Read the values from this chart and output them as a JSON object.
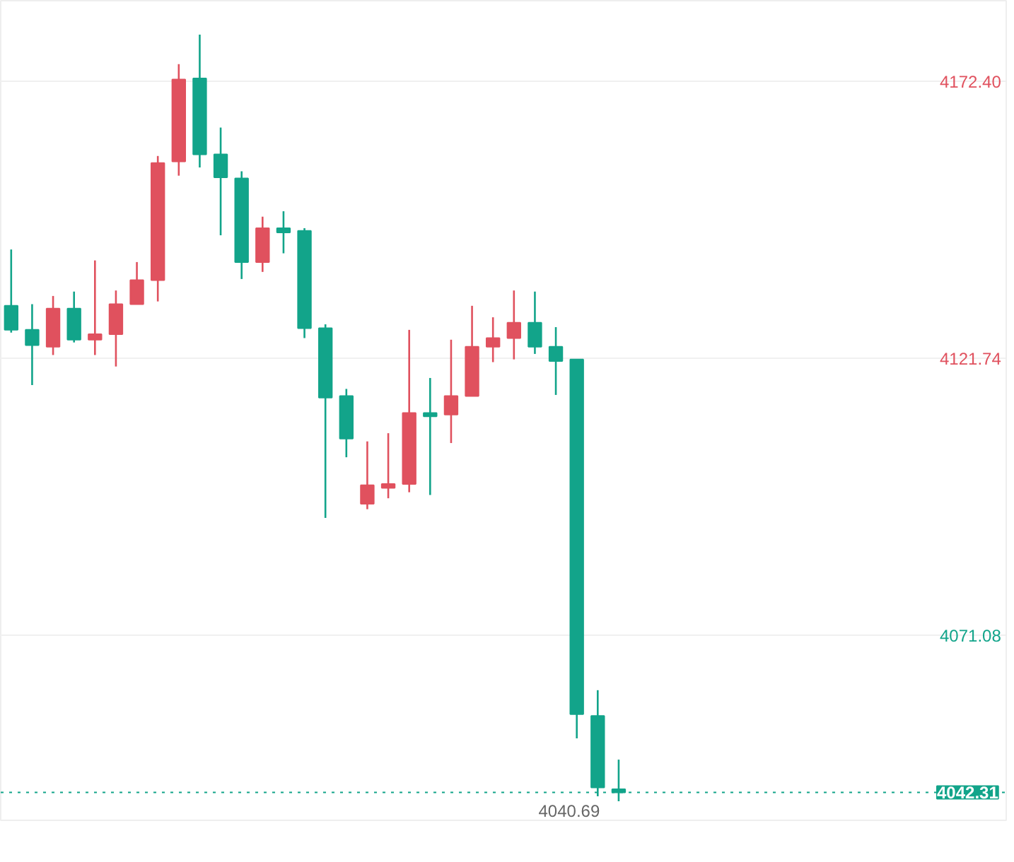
{
  "chart_data": {
    "type": "candlestick",
    "categories": [
      null,
      null,
      null,
      null,
      null,
      null,
      null,
      null,
      null,
      null,
      null,
      null,
      null,
      null,
      null,
      null,
      null,
      null,
      null,
      null,
      null,
      null,
      null,
      null,
      null,
      null,
      null,
      null,
      null,
      null,
      null,
      null,
      null,
      null,
      null,
      null,
      null,
      null,
      null,
      null,
      null,
      null,
      null,
      null,
      null,
      null,
      null,
      null
    ],
    "ohlc": [
      [
        4131.3,
        4141.6,
        4126.4,
        4126.9
      ],
      [
        4126.9,
        4131.6,
        4116.8,
        4124.1
      ],
      [
        4123.8,
        4133.1,
        4122.3,
        4130.8
      ],
      [
        4130.8,
        4133.9,
        4124.6,
        4125.1
      ],
      [
        4125.1,
        4139.6,
        4122.3,
        4126.1
      ],
      [
        4126.1,
        4134.1,
        4120.2,
        4131.6
      ],
      [
        4131.6,
        4139.3,
        4131.6,
        4136.0
      ],
      [
        4136.0,
        4158.7,
        4132.1,
        4157.4
      ],
      [
        4157.7,
        4175.5,
        4155.1,
        4172.7
      ],
      [
        4172.9,
        4180.9,
        4156.6,
        4159.0
      ],
      [
        4159.0,
        4163.9,
        4144.2,
        4154.8
      ],
      [
        4154.6,
        4155.9,
        4136.2,
        4139.3
      ],
      [
        4139.3,
        4147.6,
        4137.5,
        4145.5
      ],
      [
        4145.5,
        4148.6,
        4140.9,
        4144.7
      ],
      [
        4145.0,
        4145.5,
        4125.4,
        4127.2
      ],
      [
        4127.2,
        4127.9,
        4092.5,
        4114.5
      ],
      [
        4114.8,
        4116.1,
        4103.6,
        4107.0
      ],
      [
        4095.1,
        4106.5,
        4094.1,
        4098.5
      ],
      [
        4098.0,
        4108.0,
        4096.1,
        4098.7
      ],
      [
        4098.7,
        4126.9,
        4097.2,
        4111.7
      ],
      [
        4111.7,
        4118.1,
        4096.7,
        4111.1
      ],
      [
        4111.4,
        4125.1,
        4106.2,
        4114.8
      ],
      [
        4114.8,
        4131.3,
        4114.8,
        4123.8
      ],
      [
        4123.8,
        4129.2,
        4121.0,
        4125.4
      ],
      [
        4125.4,
        4134.1,
        4121.5,
        4128.2
      ],
      [
        4128.2,
        4133.9,
        4122.5,
        4123.8
      ],
      [
        4123.8,
        4127.4,
        4115.0,
        4121.2
      ],
      [
        4121.5,
        4121.5,
        4052.2,
        4056.6
      ],
      [
        4056.3,
        4061.0,
        4041.6,
        4043.2
      ],
      [
        4042.9,
        4048.3,
        4040.69,
        4042.31
      ],
      null,
      null,
      null,
      null,
      null,
      null,
      null,
      null,
      null,
      null,
      null,
      null,
      null,
      null,
      null,
      null,
      null,
      null
    ],
    "colors": [
      "#12a48a",
      "#12a48a",
      "#e0515e",
      "#12a48a",
      "#e0515e",
      "#e0515e",
      "#e0515e",
      "#e0515e",
      "#e0515e",
      "#12a48a",
      "#12a48a",
      "#12a48a",
      "#e0515e",
      "#12a48a",
      "#12a48a",
      "#12a48a",
      "#12a48a",
      "#e0515e",
      "#e0515e",
      "#e0515e",
      "#12a48a",
      "#e0515e",
      "#e0515e",
      "#e0515e",
      "#e0515e",
      "#12a48a",
      "#12a48a",
      "#12a48a",
      "#12a48a",
      "#12a48a",
      null,
      null,
      null,
      null,
      null,
      null,
      null,
      null,
      null,
      null,
      null,
      null,
      null,
      null,
      null,
      null,
      null,
      null
    ],
    "ylim": [
      4037.2,
      4187.1
    ],
    "yticks": [
      {
        "value": 4172.4,
        "label": "4172.40"
      },
      {
        "value": 4121.74,
        "label": "4121.74"
      },
      {
        "value": 4071.08,
        "label": "4071.08"
      }
    ],
    "ref_lines": [
      {
        "axis": "y",
        "value": 4042.31,
        "label": "4042.31",
        "color": "#12a48a",
        "line_style": "dotted"
      }
    ],
    "annotations": [
      "4040.69"
    ],
    "grid": "y",
    "tick_labels": "y"
  }
}
